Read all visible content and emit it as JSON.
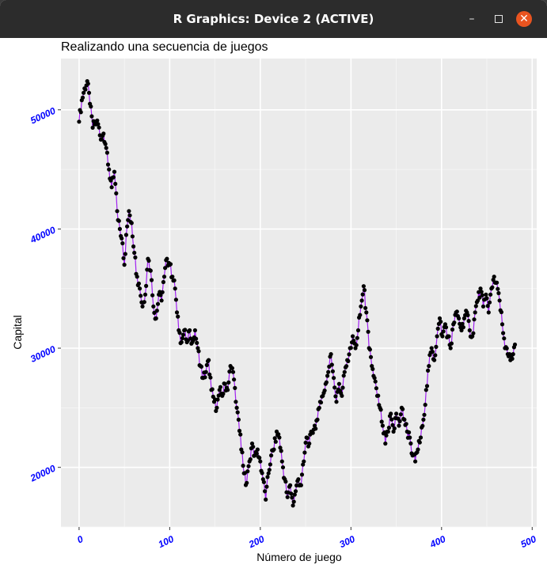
{
  "window": {
    "title": "R Graphics: Device 2 (ACTIVE)",
    "minimize_icon": "minimize-icon",
    "maximize_icon": "maximize-icon",
    "close_icon": "close-icon",
    "close_color": "#e95420"
  },
  "chart_data": {
    "type": "line",
    "title": "Realizando una secuencia de juegos",
    "xlabel": "Número de juego",
    "ylabel": "Capital",
    "xlim": [
      -20,
      505
    ],
    "ylim": [
      15000,
      54300
    ],
    "x_ticks": [
      0,
      100,
      200,
      300,
      400,
      500
    ],
    "y_ticks": [
      20000,
      30000,
      40000,
      50000
    ],
    "x_tick_labels": [
      "0",
      "100",
      "200",
      "300",
      "400",
      "500"
    ],
    "y_tick_labels": [
      "20000",
      "30000",
      "40000",
      "50000"
    ],
    "grid": true,
    "line_color": "#a020f0",
    "point_color": "#000000",
    "panel_color": "#ebebeb",
    "tick_label_color": "#0000ff",
    "keypoints": [
      [
        0,
        49000
      ],
      [
        3,
        50800
      ],
      [
        6,
        51800
      ],
      [
        9,
        52400
      ],
      [
        12,
        50500
      ],
      [
        15,
        48500
      ],
      [
        18,
        49000
      ],
      [
        21,
        48800
      ],
      [
        24,
        47500
      ],
      [
        27,
        48000
      ],
      [
        30,
        46800
      ],
      [
        33,
        45000
      ],
      [
        36,
        43500
      ],
      [
        39,
        44800
      ],
      [
        42,
        41500
      ],
      [
        45,
        40000
      ],
      [
        48,
        38800
      ],
      [
        50,
        37000
      ],
      [
        52,
        39500
      ],
      [
        55,
        41500
      ],
      [
        58,
        40500
      ],
      [
        61,
        38000
      ],
      [
        64,
        36000
      ],
      [
        67,
        35000
      ],
      [
        70,
        33500
      ],
      [
        73,
        34500
      ],
      [
        76,
        37500
      ],
      [
        79,
        36500
      ],
      [
        82,
        33500
      ],
      [
        85,
        32500
      ],
      [
        88,
        34500
      ],
      [
        91,
        34000
      ],
      [
        94,
        36000
      ],
      [
        97,
        37500
      ],
      [
        100,
        37000
      ],
      [
        103,
        36000
      ],
      [
        106,
        35000
      ],
      [
        108,
        33000
      ],
      [
        110,
        31500
      ],
      [
        113,
        30500
      ],
      [
        116,
        31500
      ],
      [
        119,
        30500
      ],
      [
        122,
        31500
      ],
      [
        125,
        30500
      ],
      [
        128,
        31500
      ],
      [
        131,
        30000
      ],
      [
        134,
        28500
      ],
      [
        137,
        27500
      ],
      [
        140,
        28000
      ],
      [
        143,
        29000
      ],
      [
        146,
        26500
      ],
      [
        149,
        25500
      ],
      [
        152,
        25000
      ],
      [
        155,
        26500
      ],
      [
        158,
        26000
      ],
      [
        161,
        27000
      ],
      [
        164,
        26500
      ],
      [
        167,
        28500
      ],
      [
        170,
        28000
      ],
      [
        173,
        25500
      ],
      [
        176,
        24000
      ],
      [
        179,
        21500
      ],
      [
        182,
        19500
      ],
      [
        185,
        18700
      ],
      [
        188,
        20500
      ],
      [
        191,
        22000
      ],
      [
        194,
        21000
      ],
      [
        197,
        21500
      ],
      [
        200,
        20500
      ],
      [
        203,
        19000
      ],
      [
        206,
        17300
      ],
      [
        209,
        19500
      ],
      [
        212,
        21000
      ],
      [
        215,
        21500
      ],
      [
        218,
        23000
      ],
      [
        221,
        22500
      ],
      [
        224,
        20500
      ],
      [
        227,
        19000
      ],
      [
        230,
        17500
      ],
      [
        233,
        18500
      ],
      [
        236,
        16800
      ],
      [
        239,
        18000
      ],
      [
        242,
        19000
      ],
      [
        245,
        18500
      ],
      [
        248,
        20500
      ],
      [
        251,
        22500
      ],
      [
        254,
        22000
      ],
      [
        257,
        23000
      ],
      [
        260,
        23500
      ],
      [
        263,
        24000
      ],
      [
        266,
        25500
      ],
      [
        269,
        26000
      ],
      [
        272,
        27000
      ],
      [
        275,
        28000
      ],
      [
        278,
        29500
      ],
      [
        281,
        27500
      ],
      [
        284,
        25500
      ],
      [
        287,
        27000
      ],
      [
        290,
        26000
      ],
      [
        293,
        28000
      ],
      [
        296,
        29000
      ],
      [
        299,
        30000
      ],
      [
        302,
        31000
      ],
      [
        305,
        30000
      ],
      [
        308,
        31500
      ],
      [
        311,
        33500
      ],
      [
        314,
        35200
      ],
      [
        317,
        33000
      ],
      [
        320,
        30000
      ],
      [
        323,
        28500
      ],
      [
        326,
        27500
      ],
      [
        329,
        26000
      ],
      [
        332,
        25000
      ],
      [
        335,
        23500
      ],
      [
        338,
        22000
      ],
      [
        341,
        23000
      ],
      [
        344,
        24500
      ],
      [
        347,
        23000
      ],
      [
        350,
        24500
      ],
      [
        353,
        23500
      ],
      [
        356,
        25000
      ],
      [
        359,
        24000
      ],
      [
        362,
        23000
      ],
      [
        365,
        22500
      ],
      [
        368,
        21000
      ],
      [
        371,
        20500
      ],
      [
        374,
        21500
      ],
      [
        377,
        22500
      ],
      [
        380,
        24000
      ],
      [
        383,
        26500
      ],
      [
        386,
        28500
      ],
      [
        389,
        30000
      ],
      [
        392,
        29000
      ],
      [
        395,
        31000
      ],
      [
        398,
        32500
      ],
      [
        401,
        31000
      ],
      [
        404,
        32000
      ],
      [
        407,
        31000
      ],
      [
        410,
        30000
      ],
      [
        413,
        32000
      ],
      [
        416,
        33000
      ],
      [
        419,
        32500
      ],
      [
        422,
        31500
      ],
      [
        425,
        32500
      ],
      [
        428,
        33000
      ],
      [
        431,
        31500
      ],
      [
        434,
        31000
      ],
      [
        437,
        33000
      ],
      [
        440,
        34000
      ],
      [
        443,
        35000
      ],
      [
        446,
        33500
      ],
      [
        449,
        34500
      ],
      [
        452,
        33000
      ],
      [
        455,
        35000
      ],
      [
        458,
        36000
      ],
      [
        461,
        35500
      ],
      [
        464,
        34000
      ],
      [
        467,
        32000
      ],
      [
        470,
        30000
      ],
      [
        473,
        29500
      ],
      [
        476,
        29000
      ],
      [
        479,
        29500
      ],
      [
        481,
        30300
      ]
    ]
  }
}
